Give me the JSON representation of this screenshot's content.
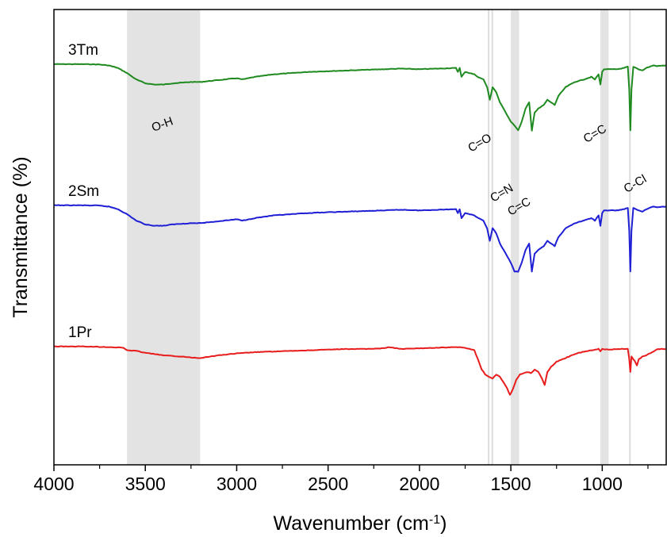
{
  "chart_data": {
    "type": "line",
    "xlabel": "Wavenumber (cm",
    "xlabel_sup": "-1",
    "xlabel_end": ")",
    "ylabel": "Transmittance (%)",
    "xlim": [
      4000,
      650
    ],
    "x_reversed": true,
    "y_ticks_shown": false,
    "grid": false,
    "x_ticks": [
      {
        "value": 4000,
        "label": "4000"
      },
      {
        "value": 3500,
        "label": "3500"
      },
      {
        "value": 3000,
        "label": "3000"
      },
      {
        "value": 2500,
        "label": "2500"
      },
      {
        "value": 2000,
        "label": "2000"
      },
      {
        "value": 1500,
        "label": "1500"
      },
      {
        "value": 1000,
        "label": "1000"
      }
    ],
    "x_minor_ticks": [
      3750,
      3250,
      2750,
      2250,
      1750,
      1250,
      750
    ],
    "bands": [
      {
        "from": 3600,
        "to": 3200,
        "kind": "region"
      },
      {
        "from": 1500,
        "to": 1455,
        "kind": "region"
      },
      {
        "from": 1010,
        "to": 965,
        "kind": "region"
      },
      {
        "from": 1625,
        "to": 1618,
        "kind": "line"
      },
      {
        "from": 1605,
        "to": 1598,
        "kind": "line"
      },
      {
        "from": 852,
        "to": 845,
        "kind": "line"
      }
    ],
    "series": [
      {
        "name": "3Tm",
        "color": "#1f8a1f",
        "offset": 0.88,
        "points": [
          [
            4000,
            0
          ],
          [
            3850,
            0
          ],
          [
            3760,
            0.002
          ],
          [
            3700,
            0.01
          ],
          [
            3650,
            0.03
          ],
          [
            3600,
            0.07
          ],
          [
            3550,
            0.12
          ],
          [
            3500,
            0.15
          ],
          [
            3450,
            0.16
          ],
          [
            3400,
            0.16
          ],
          [
            3350,
            0.15
          ],
          [
            3300,
            0.145
          ],
          [
            3250,
            0.14
          ],
          [
            3200,
            0.14
          ],
          [
            3100,
            0.125
          ],
          [
            3000,
            0.11
          ],
          [
            2970,
            0.12
          ],
          [
            2900,
            0.1
          ],
          [
            2800,
            0.08
          ],
          [
            2700,
            0.07
          ],
          [
            2600,
            0.06
          ],
          [
            2500,
            0.055
          ],
          [
            2400,
            0.05
          ],
          [
            2300,
            0.045
          ],
          [
            2100,
            0.035
          ],
          [
            2000,
            0.04
          ],
          [
            1900,
            0.035
          ],
          [
            1800,
            0.03
          ],
          [
            1790,
            0.06
          ],
          [
            1780,
            0.03
          ],
          [
            1770,
            0.1
          ],
          [
            1750,
            0.06
          ],
          [
            1700,
            0.08
          ],
          [
            1680,
            0.1
          ],
          [
            1650,
            0.12
          ],
          [
            1630,
            0.18
          ],
          [
            1615,
            0.28
          ],
          [
            1600,
            0.18
          ],
          [
            1580,
            0.22
          ],
          [
            1560,
            0.3
          ],
          [
            1540,
            0.35
          ],
          [
            1520,
            0.4
          ],
          [
            1500,
            0.45
          ],
          [
            1480,
            0.48
          ],
          [
            1460,
            0.52
          ],
          [
            1440,
            0.45
          ],
          [
            1420,
            0.35
          ],
          [
            1400,
            0.3
          ],
          [
            1385,
            0.52
          ],
          [
            1370,
            0.38
          ],
          [
            1350,
            0.35
          ],
          [
            1320,
            0.32
          ],
          [
            1300,
            0.28
          ],
          [
            1280,
            0.3
          ],
          [
            1260,
            0.32
          ],
          [
            1240,
            0.25
          ],
          [
            1200,
            0.18
          ],
          [
            1150,
            0.14
          ],
          [
            1100,
            0.12
          ],
          [
            1060,
            0.1
          ],
          [
            1040,
            0.12
          ],
          [
            1020,
            0.08
          ],
          [
            1010,
            0.16
          ],
          [
            1000,
            0.06
          ],
          [
            990,
            0.04
          ],
          [
            960,
            0.04
          ],
          [
            920,
            0.04
          ],
          [
            880,
            0.03
          ],
          [
            860,
            0.02
          ],
          [
            852,
            0.2
          ],
          [
            846,
            0.52
          ],
          [
            840,
            0.2
          ],
          [
            830,
            0.02
          ],
          [
            800,
            0.04
          ],
          [
            780,
            0.05
          ],
          [
            760,
            0.03
          ],
          [
            720,
            0.01
          ],
          [
            700,
            0.015
          ],
          [
            650,
            0.01
          ]
        ]
      },
      {
        "name": "2Sm",
        "color": "#1f1fd6",
        "offset": 0.57,
        "points": [
          [
            4000,
            0
          ],
          [
            3850,
            0
          ],
          [
            3760,
            0.002
          ],
          [
            3700,
            0.01
          ],
          [
            3650,
            0.03
          ],
          [
            3600,
            0.07
          ],
          [
            3550,
            0.12
          ],
          [
            3500,
            0.15
          ],
          [
            3450,
            0.16
          ],
          [
            3400,
            0.16
          ],
          [
            3350,
            0.15
          ],
          [
            3300,
            0.145
          ],
          [
            3250,
            0.14
          ],
          [
            3200,
            0.14
          ],
          [
            3100,
            0.125
          ],
          [
            3000,
            0.11
          ],
          [
            2970,
            0.12
          ],
          [
            2900,
            0.1
          ],
          [
            2800,
            0.08
          ],
          [
            2700,
            0.07
          ],
          [
            2600,
            0.06
          ],
          [
            2500,
            0.055
          ],
          [
            2400,
            0.05
          ],
          [
            2300,
            0.045
          ],
          [
            2100,
            0.035
          ],
          [
            2000,
            0.04
          ],
          [
            1900,
            0.035
          ],
          [
            1800,
            0.03
          ],
          [
            1790,
            0.06
          ],
          [
            1780,
            0.03
          ],
          [
            1770,
            0.1
          ],
          [
            1750,
            0.06
          ],
          [
            1700,
            0.08
          ],
          [
            1680,
            0.1
          ],
          [
            1650,
            0.12
          ],
          [
            1630,
            0.18
          ],
          [
            1615,
            0.28
          ],
          [
            1600,
            0.18
          ],
          [
            1580,
            0.22
          ],
          [
            1560,
            0.3
          ],
          [
            1540,
            0.35
          ],
          [
            1520,
            0.4
          ],
          [
            1500,
            0.45
          ],
          [
            1480,
            0.52
          ],
          [
            1460,
            0.52
          ],
          [
            1440,
            0.45
          ],
          [
            1420,
            0.35
          ],
          [
            1400,
            0.3
          ],
          [
            1385,
            0.52
          ],
          [
            1370,
            0.38
          ],
          [
            1350,
            0.35
          ],
          [
            1320,
            0.32
          ],
          [
            1300,
            0.28
          ],
          [
            1280,
            0.3
          ],
          [
            1260,
            0.32
          ],
          [
            1240,
            0.25
          ],
          [
            1200,
            0.18
          ],
          [
            1150,
            0.14
          ],
          [
            1100,
            0.12
          ],
          [
            1060,
            0.1
          ],
          [
            1040,
            0.12
          ],
          [
            1020,
            0.08
          ],
          [
            1010,
            0.16
          ],
          [
            1000,
            0.06
          ],
          [
            990,
            0.04
          ],
          [
            960,
            0.04
          ],
          [
            920,
            0.04
          ],
          [
            880,
            0.03
          ],
          [
            860,
            0.02
          ],
          [
            852,
            0.2
          ],
          [
            846,
            0.52
          ],
          [
            840,
            0.2
          ],
          [
            830,
            0.02
          ],
          [
            800,
            0.04
          ],
          [
            780,
            0.05
          ],
          [
            760,
            0.03
          ],
          [
            720,
            0.01
          ],
          [
            700,
            0.015
          ],
          [
            650,
            0.01
          ]
        ]
      },
      {
        "name": "1Pr",
        "color": "#e81c1c",
        "offset": 0.26,
        "points": [
          [
            4000,
            0
          ],
          [
            3850,
            0
          ],
          [
            3700,
            0.005
          ],
          [
            3620,
            0.01
          ],
          [
            3600,
            0.03
          ],
          [
            3550,
            0.035
          ],
          [
            3500,
            0.05
          ],
          [
            3400,
            0.07
          ],
          [
            3300,
            0.08
          ],
          [
            3220,
            0.09
          ],
          [
            3200,
            0.09
          ],
          [
            3150,
            0.08
          ],
          [
            3100,
            0.07
          ],
          [
            3000,
            0.055
          ],
          [
            2900,
            0.045
          ],
          [
            2800,
            0.04
          ],
          [
            2700,
            0.035
          ],
          [
            2600,
            0.03
          ],
          [
            2500,
            0.025
          ],
          [
            2400,
            0.02
          ],
          [
            2300,
            0.02
          ],
          [
            2200,
            0.015
          ],
          [
            2170,
            0.005
          ],
          [
            2100,
            0.02
          ],
          [
            2000,
            0.015
          ],
          [
            1900,
            0.01
          ],
          [
            1800,
            0.005
          ],
          [
            1750,
            0.01
          ],
          [
            1700,
            0.03
          ],
          [
            1680,
            0.1
          ],
          [
            1660,
            0.18
          ],
          [
            1640,
            0.22
          ],
          [
            1620,
            0.24
          ],
          [
            1600,
            0.25
          ],
          [
            1580,
            0.22
          ],
          [
            1560,
            0.24
          ],
          [
            1540,
            0.28
          ],
          [
            1520,
            0.33
          ],
          [
            1505,
            0.38
          ],
          [
            1490,
            0.34
          ],
          [
            1470,
            0.26
          ],
          [
            1450,
            0.22
          ],
          [
            1430,
            0.21
          ],
          [
            1410,
            0.2
          ],
          [
            1390,
            0.21
          ],
          [
            1370,
            0.18
          ],
          [
            1350,
            0.2
          ],
          [
            1330,
            0.25
          ],
          [
            1315,
            0.3
          ],
          [
            1300,
            0.2
          ],
          [
            1280,
            0.16
          ],
          [
            1250,
            0.12
          ],
          [
            1200,
            0.09
          ],
          [
            1150,
            0.06
          ],
          [
            1100,
            0.04
          ],
          [
            1060,
            0.03
          ],
          [
            1020,
            0.02
          ],
          [
            1010,
            0.04
          ],
          [
            1000,
            0.02
          ],
          [
            960,
            0.025
          ],
          [
            920,
            0.02
          ],
          [
            880,
            0.02
          ],
          [
            860,
            0.02
          ],
          [
            852,
            0.1
          ],
          [
            846,
            0.2
          ],
          [
            840,
            0.08
          ],
          [
            830,
            0.1
          ],
          [
            820,
            0.12
          ],
          [
            810,
            0.15
          ],
          [
            800,
            0.1
          ],
          [
            780,
            0.08
          ],
          [
            760,
            0.07
          ],
          [
            720,
            0.04
          ],
          [
            700,
            0.02
          ],
          [
            650,
            0.02
          ]
        ]
      }
    ],
    "annotations": [
      {
        "text": "O-H",
        "x": 3400,
        "y": 0.74,
        "rotate": -20
      },
      {
        "text": "C=O",
        "x": 1660,
        "y": 0.7,
        "rotate": -30
      },
      {
        "text": "C=N",
        "x": 1540,
        "y": 0.59,
        "rotate": -30
      },
      {
        "text": "C=C",
        "x": 1445,
        "y": 0.56,
        "rotate": -30
      },
      {
        "text": "C=C",
        "x": 1030,
        "y": 0.72,
        "rotate": -30
      },
      {
        "text": "C-Cl",
        "x": 810,
        "y": 0.61,
        "rotate": -30
      }
    ]
  }
}
